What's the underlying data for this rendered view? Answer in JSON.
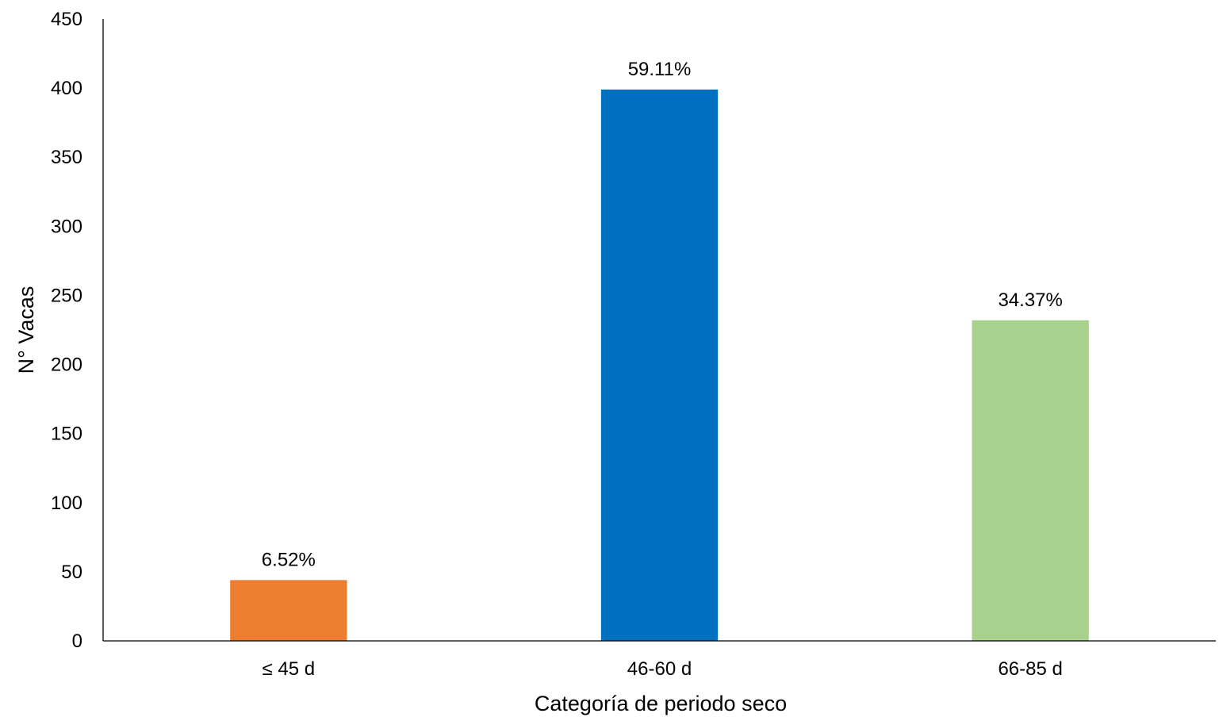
{
  "chart_data": {
    "type": "bar",
    "title": "",
    "xlabel": "Categoría de periodo seco",
    "ylabel": "N° Vacas",
    "ylim": [
      0,
      450
    ],
    "yticks": [
      0,
      50,
      100,
      150,
      200,
      250,
      300,
      350,
      400,
      450
    ],
    "grid": false,
    "legend": "none",
    "categories": [
      "≤ 45 d",
      "46-60 d",
      "66-85 d"
    ],
    "values": [
      44,
      399,
      232
    ],
    "data_labels": [
      "6.52%",
      "59.11%",
      "34.37%"
    ],
    "colors": [
      "#ED7D31",
      "#0070C0",
      "#A9D18E"
    ]
  }
}
